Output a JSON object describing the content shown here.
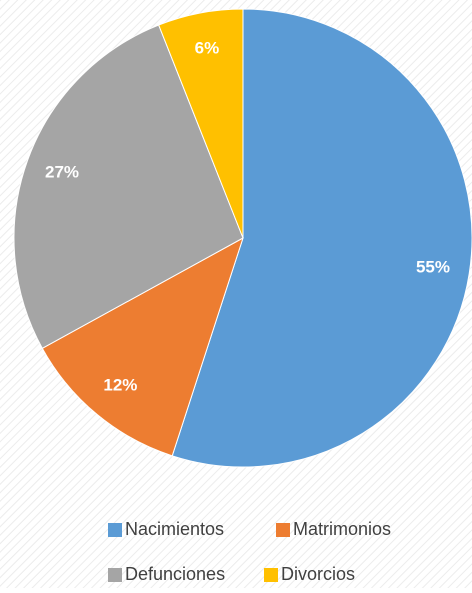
{
  "chart_data": {
    "type": "pie",
    "categories": [
      "Nacimientos",
      "Matrimonios",
      "Defunciones",
      "Divorcios"
    ],
    "values": [
      55,
      12,
      27,
      6
    ],
    "value_labels": [
      "55%",
      "12%",
      "27%",
      "6%"
    ],
    "colors": [
      "#5b9bd5",
      "#ed7d31",
      "#a5a5a5",
      "#ffc000"
    ],
    "legend": "bottom"
  }
}
